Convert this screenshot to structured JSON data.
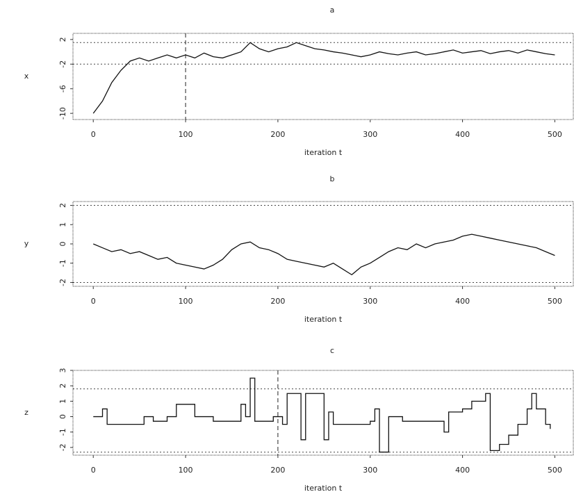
{
  "chart_data": [
    {
      "type": "line",
      "title": "a",
      "x_label": "iteration t",
      "y_label": "x",
      "x": [
        0,
        10,
        20,
        30,
        40,
        50,
        60,
        70,
        80,
        90,
        100,
        110,
        120,
        130,
        140,
        150,
        160,
        170,
        180,
        190,
        200,
        210,
        220,
        230,
        240,
        250,
        260,
        270,
        280,
        290,
        300,
        310,
        320,
        330,
        340,
        350,
        360,
        370,
        380,
        390,
        400,
        410,
        420,
        430,
        440,
        450,
        460,
        470,
        480,
        490,
        500
      ],
      "values": [
        -10,
        -8,
        -5,
        -3,
        -1.5,
        -1,
        -1.5,
        -1,
        -0.5,
        -1,
        -0.5,
        -1,
        -0.2,
        -0.8,
        -1,
        -0.5,
        0,
        1.5,
        0.5,
        0,
        0.5,
        0.8,
        1.5,
        1,
        0.5,
        0.3,
        0,
        -0.2,
        -0.5,
        -0.8,
        -0.5,
        0,
        -0.3,
        -0.5,
        -0.2,
        0,
        -0.5,
        -0.3,
        0,
        0.3,
        -0.2,
        0,
        0.2,
        -0.3,
        0,
        0.2,
        -0.2,
        0.3,
        0,
        -0.3,
        -0.5
      ],
      "color": "#111111",
      "xlim": [
        -22,
        520
      ],
      "xticks": [
        0,
        100,
        200,
        300,
        400,
        500
      ],
      "ylim": [
        -11,
        3
      ],
      "yticks": [
        -10,
        -6,
        -2,
        2
      ],
      "hlines": [
        1.5,
        -2
      ],
      "vline": 100
    },
    {
      "type": "line",
      "title": "b",
      "x_label": "iteration t",
      "y_label": "y",
      "x": [
        0,
        10,
        20,
        30,
        40,
        50,
        60,
        70,
        80,
        90,
        100,
        110,
        120,
        130,
        140,
        150,
        160,
        170,
        180,
        190,
        200,
        210,
        220,
        230,
        240,
        250,
        260,
        270,
        280,
        290,
        300,
        310,
        320,
        330,
        340,
        350,
        360,
        370,
        380,
        390,
        400,
        410,
        420,
        430,
        440,
        450,
        460,
        470,
        480,
        490,
        500
      ],
      "values": [
        0,
        -0.2,
        -0.4,
        -0.3,
        -0.5,
        -0.4,
        -0.6,
        -0.8,
        -0.7,
        -1,
        -1.1,
        -1.2,
        -1.3,
        -1.1,
        -0.8,
        -0.3,
        0,
        0.1,
        -0.2,
        -0.3,
        -0.5,
        -0.8,
        -0.9,
        -1,
        -1.1,
        -1.2,
        -1,
        -1.3,
        -1.6,
        -1.2,
        -1,
        -0.7,
        -0.4,
        -0.2,
        -0.3,
        0,
        -0.2,
        0,
        0.1,
        0.2,
        0.4,
        0.5,
        0.4,
        0.3,
        0.2,
        0.1,
        0,
        -0.1,
        -0.2,
        -0.4,
        -0.6
      ],
      "color": "#111111",
      "xlim": [
        -22,
        520
      ],
      "xticks": [
        0,
        100,
        200,
        300,
        400,
        500
      ],
      "ylim": [
        -2.2,
        2.2
      ],
      "yticks": [
        -2,
        -1,
        0,
        1,
        2
      ],
      "hlines": [
        2,
        -2
      ]
    },
    {
      "type": "step",
      "title": "c",
      "x_label": "iteration t",
      "y_label": "z",
      "x": [
        0,
        10,
        15,
        50,
        55,
        65,
        70,
        80,
        90,
        100,
        110,
        130,
        160,
        165,
        170,
        175,
        190,
        195,
        205,
        210,
        225,
        230,
        245,
        250,
        255,
        260,
        280,
        300,
        305,
        310,
        320,
        335,
        370,
        380,
        385,
        395,
        400,
        410,
        425,
        430,
        440,
        450,
        460,
        470,
        475,
        480,
        490,
        495
      ],
      "values": [
        0,
        0.5,
        -0.5,
        -0.5,
        0,
        -0.3,
        -0.3,
        0,
        0.8,
        0.8,
        0,
        -0.3,
        0.8,
        0,
        2.5,
        -0.3,
        -0.3,
        0,
        -0.5,
        1.5,
        -1.5,
        1.5,
        1.5,
        -1.5,
        0.3,
        -0.5,
        -0.5,
        -0.3,
        0.5,
        -2.3,
        0,
        -0.3,
        -0.3,
        -1,
        0.3,
        0.3,
        0.5,
        1,
        1.5,
        -2.2,
        -1.8,
        -1.2,
        -0.5,
        0.5,
        1.5,
        0.5,
        -0.5,
        -0.8
      ],
      "color": "#111111",
      "xlim": [
        -22,
        520
      ],
      "xticks": [
        0,
        100,
        200,
        300,
        400,
        500
      ],
      "ylim": [
        -2.5,
        3
      ],
      "yticks": [
        -2,
        -1,
        0,
        1,
        2,
        3
      ],
      "hlines": [
        1.8,
        -2.3
      ],
      "vline": 200
    }
  ]
}
